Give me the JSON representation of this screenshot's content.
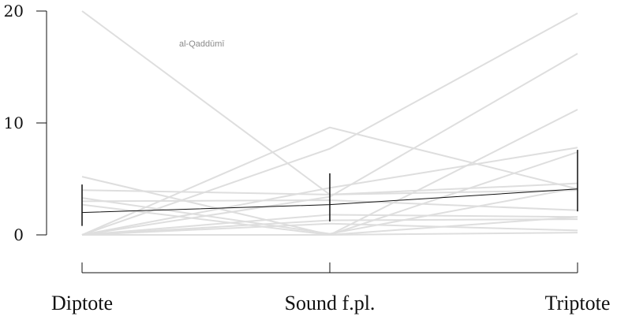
{
  "chart_data": {
    "type": "line",
    "title": "",
    "xlabel": "",
    "ylabel": "",
    "categories": [
      "Diptote",
      "Sound f.pl.",
      "Triptote"
    ],
    "yticks": [
      0,
      10,
      20
    ],
    "ylim": [
      -3.6,
      20.5
    ],
    "grid": false,
    "annotations": [
      {
        "text": "al-Qaddūmī"
      }
    ],
    "individual_lines": [
      [
        20.0,
        3.6,
        4.0
      ],
      [
        0.0,
        9.6,
        4.1
      ],
      [
        0.0,
        7.7,
        19.8
      ],
      [
        0.0,
        3.4,
        16.2
      ],
      [
        5.2,
        0.0,
        11.2
      ],
      [
        0.0,
        4.2,
        7.8
      ],
      [
        0.0,
        0.0,
        7.4
      ],
      [
        4.0,
        3.6,
        4.6
      ],
      [
        3.3,
        0.1,
        4.2
      ],
      [
        3.0,
        3.1,
        2.2
      ],
      [
        2.7,
        0.0,
        1.6
      ],
      [
        0.0,
        1.8,
        1.6
      ],
      [
        0.0,
        1.3,
        1.4
      ],
      [
        0.0,
        1.0,
        0.4
      ],
      [
        0.0,
        0.0,
        0.2
      ]
    ],
    "mean_series": {
      "values": [
        2.0,
        2.7,
        4.1
      ],
      "error_low": [
        0.8,
        1.2,
        2.1
      ],
      "error_high": [
        4.5,
        5.5,
        7.6
      ]
    }
  }
}
